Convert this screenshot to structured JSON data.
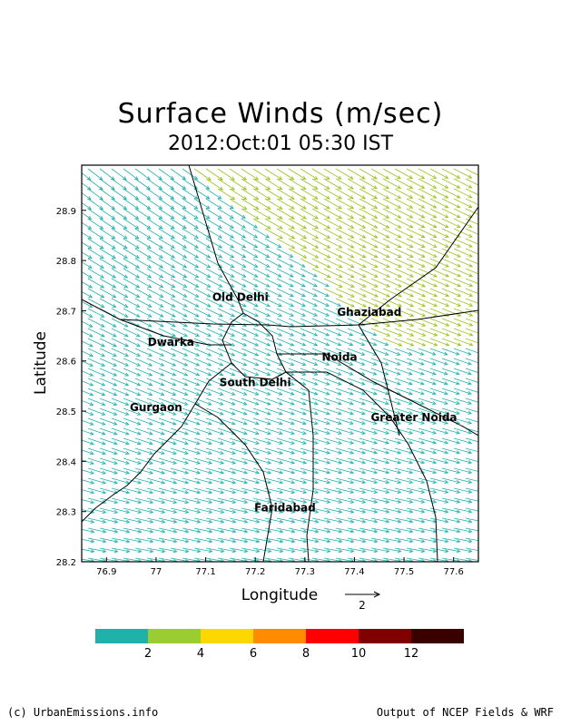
{
  "title": "Surface Winds (m/sec)",
  "subtitle": "2012:Oct:01 05:30 IST",
  "axes": {
    "xlabel": "Longitude",
    "ylabel": "Latitude",
    "xlim": [
      76.85,
      77.65
    ],
    "ylim": [
      28.2,
      28.99
    ],
    "xticks": [
      "76.9",
      "77",
      "77.1",
      "77.2",
      "77.3",
      "77.4",
      "77.5",
      "77.6"
    ],
    "yticks": [
      "28.2",
      "28.3",
      "28.4",
      "28.5",
      "28.6",
      "28.7",
      "28.8",
      "28.9"
    ]
  },
  "reference_vector": {
    "label": "2",
    "magnitude": 2
  },
  "places": [
    {
      "name": "Old Delhi",
      "lon": 77.17,
      "lat": 28.72
    },
    {
      "name": "Ghaziabad",
      "lon": 77.43,
      "lat": 28.69
    },
    {
      "name": "Dwarka",
      "lon": 77.03,
      "lat": 28.63
    },
    {
      "name": "Noida",
      "lon": 77.37,
      "lat": 28.6
    },
    {
      "name": "South Delhi",
      "lon": 77.2,
      "lat": 28.55
    },
    {
      "name": "Gurgaon",
      "lon": 77.0,
      "lat": 28.5
    },
    {
      "name": "Greater Noida",
      "lon": 77.52,
      "lat": 28.48
    },
    {
      "name": "Faridabad",
      "lon": 77.26,
      "lat": 28.3
    }
  ],
  "wind_field": {
    "regions": [
      {
        "zone": "north-east",
        "speed_class": "2-4",
        "color": "#9bc21e"
      },
      {
        "zone": "south-west",
        "speed_class": "0-2",
        "color": "#23b1ad"
      }
    ]
  },
  "colorbar": {
    "colors": [
      "#20b2aa",
      "#9acd32",
      "#ffd700",
      "#ff8c00",
      "#ff0000",
      "#800000",
      "#3a0000"
    ],
    "labels": [
      "2",
      "4",
      "6",
      "8",
      "10",
      "12"
    ]
  },
  "footer": {
    "left": "(c) UrbanEmissions.info",
    "right": "Output of NCEP Fields & WRF"
  }
}
